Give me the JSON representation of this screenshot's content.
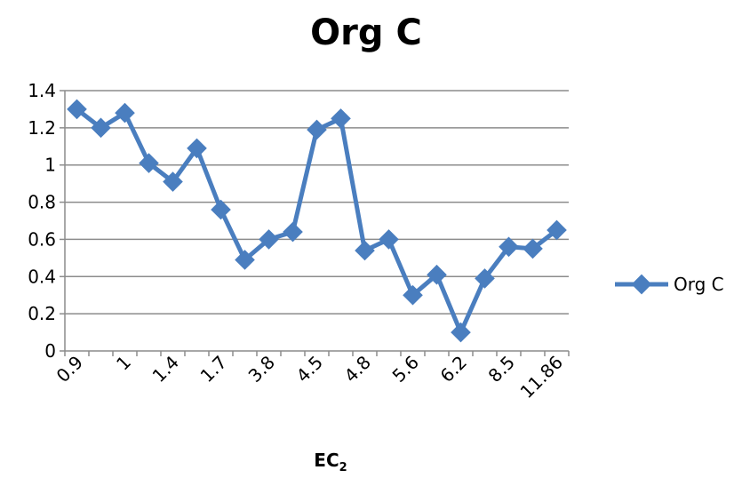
{
  "chart_data": {
    "type": "line",
    "title": "Org C",
    "xlabel": "EC",
    "xlabel_subscript": "2",
    "ylabel": "",
    "ylim": [
      0,
      1.4
    ],
    "yticks": [
      "0",
      "0.2",
      "0.4",
      "0.6",
      "0.8",
      "1",
      "1.2",
      "1.4"
    ],
    "grid": true,
    "legend_position": "right",
    "series_color": "#4a7ebf",
    "x_tick_labels": [
      "0.9",
      "1",
      "1.4",
      "1.7",
      "3.8",
      "4.5",
      "4.8",
      "5.6",
      "6.2",
      "8.5",
      "11.86"
    ],
    "series": [
      {
        "name": "Org C",
        "values": [
          1.3,
          1.2,
          1.28,
          1.01,
          0.91,
          1.09,
          0.76,
          0.49,
          0.6,
          0.64,
          1.19,
          1.25,
          0.54,
          0.6,
          0.3,
          0.41,
          0.1,
          0.39,
          0.56,
          0.55,
          0.65
        ]
      }
    ]
  }
}
